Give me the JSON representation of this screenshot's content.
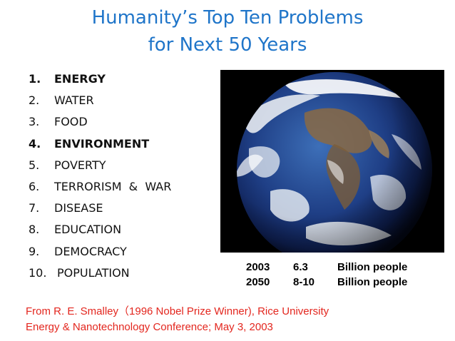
{
  "title": {
    "line1": "Humanity’s Top Ten Problems",
    "line2": "for Next 50 Years"
  },
  "problems": [
    {
      "num": "1.",
      "label": "ENERGY"
    },
    {
      "num": "2.",
      "label": "WATER"
    },
    {
      "num": "3.",
      "label": "FOOD"
    },
    {
      "num": "4.",
      "label": "ENVIRONMENT"
    },
    {
      "num": "5.",
      "label": "POVERTY"
    },
    {
      "num": "6.",
      "label": "TERRORISM  &  WAR"
    },
    {
      "num": "7.",
      "label": "DISEASE"
    },
    {
      "num": "8.",
      "label": "EDUCATION"
    },
    {
      "num": "9.",
      "label": "DEMOCRACY"
    },
    {
      "num": "10.",
      "label": "POPULATION"
    }
  ],
  "population": [
    {
      "year": "2003",
      "value": "6.3",
      "unit": "Billion people"
    },
    {
      "year": "2050",
      "value": "8-10",
      "unit": "Billion people"
    }
  ],
  "credit": {
    "line1": "From R. E. Smalley（1996 Nobel Prize Winner), Rice University",
    "line2": "Energy & Nanotechnology Conference; May 3, 2003"
  },
  "colors": {
    "title": "#1f75c9",
    "credit": "#e3261e"
  },
  "image": "earth-from-space"
}
